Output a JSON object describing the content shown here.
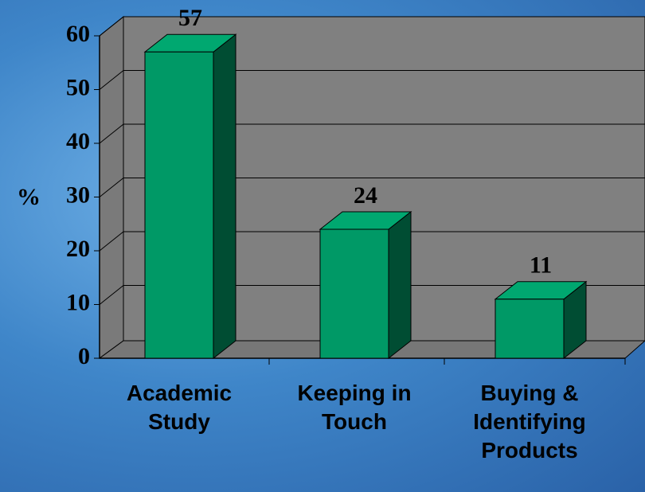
{
  "chart_data": {
    "type": "bar3d",
    "categories": [
      "Academic Study",
      "Keeping in Touch",
      "Buying & Identifying Products"
    ],
    "values": [
      57,
      24,
      11
    ],
    "color": "#009966",
    "y_label": "%",
    "ylim": [
      0,
      60
    ],
    "yticks": [
      0,
      10,
      20,
      30,
      40,
      50,
      60
    ],
    "grid": true
  }
}
